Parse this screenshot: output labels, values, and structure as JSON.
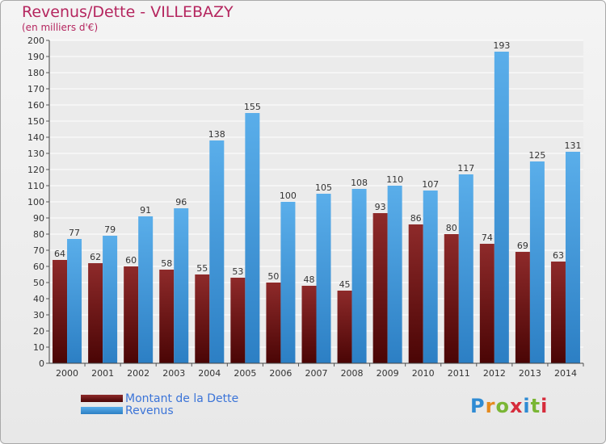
{
  "chart_data": {
    "type": "bar",
    "title": "Revenus/Dette - VILLEBAZY",
    "subtitle": "(en milliers d'€)",
    "categories": [
      "2000",
      "2001",
      "2002",
      "2003",
      "2004",
      "2005",
      "2006",
      "2007",
      "2008",
      "2009",
      "2010",
      "2011",
      "2012",
      "2013",
      "2014"
    ],
    "series": [
      {
        "name": "Montant de la Dette",
        "color": "#7a1a1a",
        "values": [
          64,
          62,
          60,
          58,
          55,
          53,
          50,
          48,
          45,
          93,
          86,
          80,
          74,
          69,
          63
        ]
      },
      {
        "name": "Revenus",
        "color": "#4a9fdf",
        "values": [
          77,
          79,
          91,
          96,
          138,
          155,
          100,
          105,
          108,
          110,
          107,
          117,
          193,
          125,
          131
        ]
      }
    ],
    "ylim": [
      0,
      200
    ],
    "ytick_step": 10,
    "grid": true,
    "legend": "bottom-left"
  },
  "brand": {
    "text": "Proxiti"
  }
}
